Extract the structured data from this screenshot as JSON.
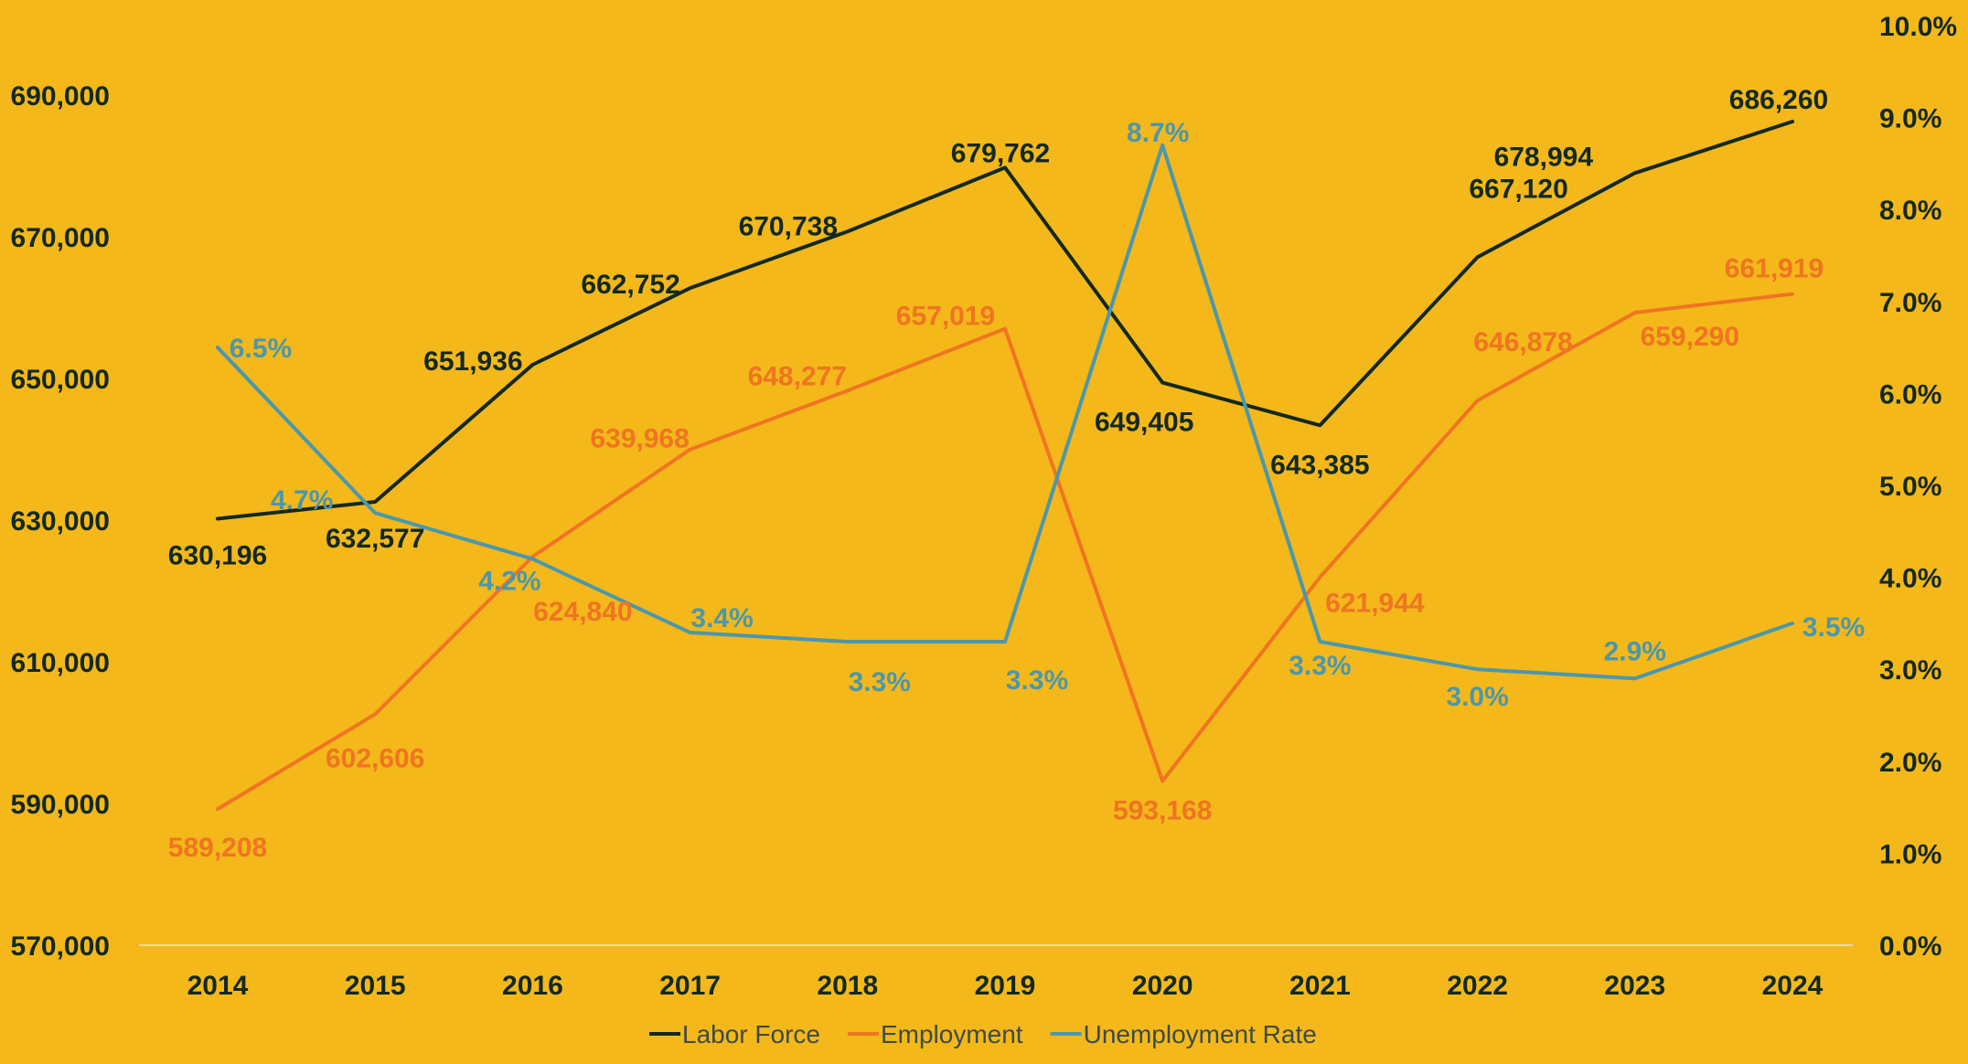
{
  "chart_data": {
    "type": "line",
    "title": "",
    "categories": [
      "2014",
      "2015",
      "2016",
      "2017",
      "2018",
      "2019",
      "2020",
      "2021",
      "2022",
      "2023",
      "2024"
    ],
    "y_left": {
      "min": 570000,
      "max": 690000,
      "step": 20000,
      "ticks": [
        "570,000",
        "590,000",
        "610,000",
        "630,000",
        "650,000",
        "670,000",
        "690,000"
      ]
    },
    "y_right": {
      "min": 0,
      "max": 10,
      "step": 1,
      "ticks": [
        "0.0%",
        "1.0%",
        "2.0%",
        "3.0%",
        "4.0%",
        "5.0%",
        "6.0%",
        "7.0%",
        "8.0%",
        "9.0%",
        "10.0%"
      ]
    },
    "series": [
      {
        "name": "Labor Force",
        "axis": "left",
        "color": "#13291f",
        "values": [
          630196,
          632577,
          651936,
          662752,
          670738,
          679762,
          649405,
          643385,
          667120,
          678994,
          686260
        ],
        "labels": [
          "630,196",
          "632,577",
          "651,936",
          "662,752",
          "670,738",
          "679,762",
          "649,405",
          "643,385",
          "667,120",
          "678,994",
          "686,260"
        ]
      },
      {
        "name": "Employment",
        "axis": "left",
        "color": "#f07421",
        "values": [
          589208,
          602606,
          624840,
          639968,
          648277,
          657019,
          593168,
          621944,
          646878,
          659290,
          661919
        ],
        "labels": [
          "589,208",
          "602,606",
          "624,840",
          "639,968",
          "648,277",
          "657,019",
          "593,168",
          "621,944",
          "646,878",
          "659,290",
          "661,919"
        ]
      },
      {
        "name": "Unemployment Rate",
        "axis": "right",
        "color": "#4b97ad",
        "values": [
          6.5,
          4.7,
          4.2,
          3.4,
          3.3,
          3.3,
          8.7,
          3.3,
          3.0,
          2.9,
          3.5
        ],
        "labels": [
          "6.5%",
          "4.7%",
          "4.2%",
          "3.4%",
          "3.3%",
          "3.3%",
          "8.7%",
          "3.3%",
          "3.0%",
          "2.9%",
          "3.5%"
        ]
      }
    ],
    "legend": {
      "position": "bottom",
      "entries": [
        "Labor Force",
        "Employment",
        "Unemployment Rate"
      ]
    },
    "grid": false
  }
}
